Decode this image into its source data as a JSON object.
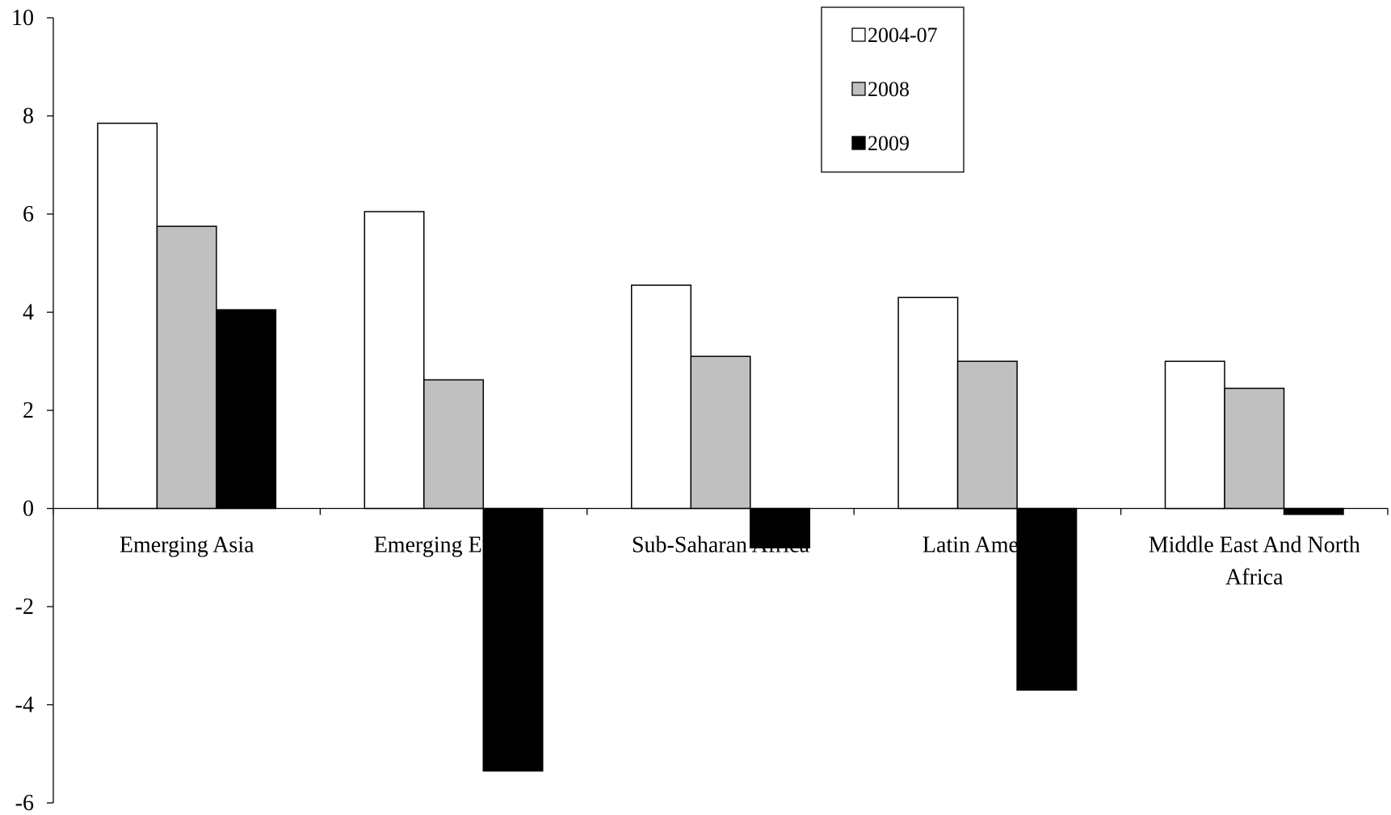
{
  "chart_data": {
    "type": "bar",
    "title": "",
    "xlabel": "",
    "ylabel": "",
    "ylim": [
      -6,
      10
    ],
    "y_ticks": [
      "10",
      "8",
      "6",
      "4",
      "2",
      "0",
      "-2",
      "-4",
      "-6"
    ],
    "y_tick_values": [
      10,
      8,
      6,
      4,
      2,
      0,
      -2,
      -4,
      -6
    ],
    "categories": [
      "Emerging Asia",
      "Emerging Europe",
      "Sub-Saharan Africa",
      "Latin America",
      "Middle East And North Africa"
    ],
    "series": [
      {
        "name": "2004-07",
        "color": "#ffffff",
        "values": [
          7.85,
          6.05,
          4.55,
          4.3,
          3.0
        ]
      },
      {
        "name": "2008",
        "color": "#c0c0c0",
        "values": [
          5.75,
          2.62,
          3.1,
          3.0,
          2.45
        ]
      },
      {
        "name": "2009",
        "color": "#000000",
        "values": [
          4.05,
          -5.35,
          -0.8,
          -3.7,
          -0.12
        ]
      }
    ],
    "legend_position": "top-right",
    "grid": false
  }
}
